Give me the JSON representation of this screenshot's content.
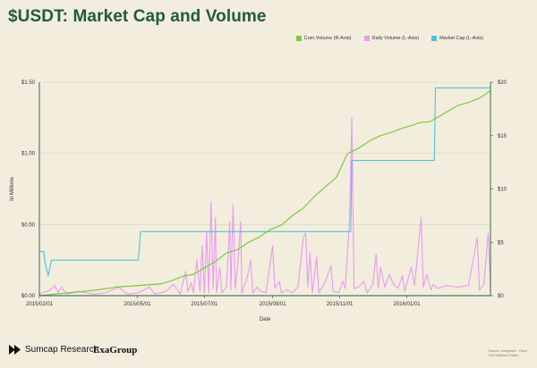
{
  "title": "$USDT: Market Cap and Volume",
  "legend": [
    {
      "label": "Cum.Volume (R-Axis)",
      "color": "#7ac943"
    },
    {
      "label": "Daily Volume (L-Axis)",
      "color": "#e89bf0"
    },
    {
      "label": "Market Cap (L-Axis)",
      "color": "#4fc3dc"
    }
  ],
  "footer": {
    "brand1": "Sumcap Research",
    "brand2": "ExaGroup",
    "source_line1": "Source: coingecko · Omni",
    "source_line2": "USD Millions/ Dates"
  },
  "chart_data": {
    "type": "line",
    "xlabel": "Date",
    "ylabel": "In Millions",
    "x_ticks": [
      "2015/02/01",
      "2015/05/01",
      "2015/07/01",
      "2015/09/01",
      "2015/11/01",
      "2016/01/01"
    ],
    "y_left_ticks": [
      "$0.00",
      "$0.50",
      "$1.00",
      "$1.50"
    ],
    "y_right_ticks": [
      "$0",
      "$5",
      "$10",
      "$15",
      "$20"
    ],
    "y_left_range": [
      0,
      1.5
    ],
    "y_right_range": [
      0,
      20
    ],
    "x_range_days": [
      0,
      410
    ],
    "x_tick_days": [
      0,
      89,
      150,
      212,
      273,
      334
    ],
    "series": [
      {
        "name": "Market Cap (L-Axis)",
        "axis": "left",
        "color": "#4fc3dc",
        "points": [
          [
            0,
            0.31
          ],
          [
            4,
            0.31
          ],
          [
            5,
            0.24
          ],
          [
            8,
            0.14
          ],
          [
            11,
            0.25
          ],
          [
            13,
            0.25
          ],
          [
            90,
            0.25
          ],
          [
            92,
            0.45
          ],
          [
            283,
            0.45
          ],
          [
            284,
            0.95
          ],
          [
            359,
            0.95
          ],
          [
            360,
            1.46
          ],
          [
            410,
            1.46
          ]
        ]
      },
      {
        "name": "Cum.Volume (R-Axis)",
        "axis": "right",
        "color": "#7ac943",
        "points": [
          [
            0,
            0
          ],
          [
            10,
            0.1
          ],
          [
            30,
            0.3
          ],
          [
            50,
            0.5
          ],
          [
            70,
            0.8
          ],
          [
            90,
            0.95
          ],
          [
            110,
            1.1
          ],
          [
            120,
            1.4
          ],
          [
            130,
            1.8
          ],
          [
            140,
            2.0
          ],
          [
            150,
            2.6
          ],
          [
            160,
            3.2
          ],
          [
            170,
            4.0
          ],
          [
            180,
            4.3
          ],
          [
            190,
            5.0
          ],
          [
            200,
            5.5
          ],
          [
            210,
            6.2
          ],
          [
            220,
            6.6
          ],
          [
            230,
            7.5
          ],
          [
            240,
            8.2
          ],
          [
            250,
            9.3
          ],
          [
            260,
            10.2
          ],
          [
            270,
            11.1
          ],
          [
            280,
            13.3
          ],
          [
            290,
            13.8
          ],
          [
            300,
            14.5
          ],
          [
            310,
            15.0
          ],
          [
            320,
            15.3
          ],
          [
            330,
            15.7
          ],
          [
            340,
            16.0
          ],
          [
            345,
            16.2
          ],
          [
            355,
            16.3
          ],
          [
            360,
            16.6
          ],
          [
            362,
            16.7
          ],
          [
            370,
            17.2
          ],
          [
            380,
            17.8
          ],
          [
            390,
            18.1
          ],
          [
            400,
            18.5
          ],
          [
            410,
            19.2
          ]
        ]
      },
      {
        "name": "Daily Volume (L-Axis)",
        "axis": "left",
        "color": "#e89bf0",
        "points": [
          [
            0,
            0.01
          ],
          [
            10,
            0.04
          ],
          [
            14,
            0.07
          ],
          [
            17,
            0.02
          ],
          [
            20,
            0.06
          ],
          [
            25,
            0.01
          ],
          [
            35,
            0.03
          ],
          [
            50,
            0.01
          ],
          [
            60,
            0.02
          ],
          [
            72,
            0.06
          ],
          [
            80,
            0.01
          ],
          [
            90,
            0.02
          ],
          [
            100,
            0.06
          ],
          [
            105,
            0.01
          ],
          [
            115,
            0.03
          ],
          [
            122,
            0.08
          ],
          [
            128,
            0.01
          ],
          [
            133,
            0.17
          ],
          [
            135,
            0.03
          ],
          [
            138,
            0.09
          ],
          [
            140,
            0.02
          ],
          [
            143,
            0.25
          ],
          [
            146,
            0.03
          ],
          [
            148,
            0.35
          ],
          [
            150,
            0.02
          ],
          [
            152,
            0.45
          ],
          [
            154,
            0.02
          ],
          [
            156,
            0.66
          ],
          [
            158,
            0.05
          ],
          [
            160,
            0.55
          ],
          [
            161,
            0.02
          ],
          [
            164,
            0.2
          ],
          [
            166,
            0.02
          ],
          [
            170,
            0.06
          ],
          [
            173,
            0.52
          ],
          [
            174,
            0.04
          ],
          [
            176,
            0.64
          ],
          [
            178,
            0.05
          ],
          [
            180,
            0.19
          ],
          [
            183,
            0.52
          ],
          [
            184,
            0.02
          ],
          [
            189,
            0.13
          ],
          [
            192,
            0.25
          ],
          [
            194,
            0.02
          ],
          [
            198,
            0.06
          ],
          [
            201,
            0.03
          ],
          [
            206,
            0.02
          ],
          [
            210,
            0.24
          ],
          [
            212,
            0.35
          ],
          [
            214,
            0.05
          ],
          [
            218,
            0.1
          ],
          [
            220,
            0.02
          ],
          [
            225,
            0.04
          ],
          [
            230,
            0.02
          ],
          [
            235,
            0.06
          ],
          [
            240,
            0.41
          ],
          [
            242,
            0.44
          ],
          [
            244,
            0.06
          ],
          [
            246,
            0.3
          ],
          [
            248,
            0.02
          ],
          [
            252,
            0.27
          ],
          [
            254,
            0.02
          ],
          [
            260,
            0.1
          ],
          [
            265,
            0.21
          ],
          [
            267,
            0.03
          ],
          [
            272,
            0.02
          ],
          [
            276,
            0.1
          ],
          [
            278,
            0.05
          ],
          [
            282,
            0.55
          ],
          [
            284,
            1.25
          ],
          [
            286,
            0.05
          ],
          [
            290,
            0.06
          ],
          [
            295,
            0.1
          ],
          [
            298,
            0.02
          ],
          [
            303,
            0.08
          ],
          [
            306,
            0.29
          ],
          [
            308,
            0.05
          ],
          [
            310,
            0.2
          ],
          [
            314,
            0.06
          ],
          [
            318,
            0.15
          ],
          [
            322,
            0.08
          ],
          [
            326,
            0.05
          ],
          [
            330,
            0.14
          ],
          [
            332,
            0.03
          ],
          [
            338,
            0.2
          ],
          [
            341,
            0.07
          ],
          [
            347,
            0.55
          ],
          [
            349,
            0.06
          ],
          [
            352,
            0.15
          ],
          [
            356,
            0.04
          ],
          [
            358,
            0.08
          ],
          [
            362,
            0.05
          ],
          [
            370,
            0.07
          ],
          [
            380,
            0.06
          ],
          [
            390,
            0.07
          ],
          [
            398,
            0.41
          ],
          [
            400,
            0.04
          ],
          [
            404,
            0.08
          ],
          [
            408,
            0.44
          ],
          [
            410,
            0.07
          ]
        ]
      }
    ]
  }
}
